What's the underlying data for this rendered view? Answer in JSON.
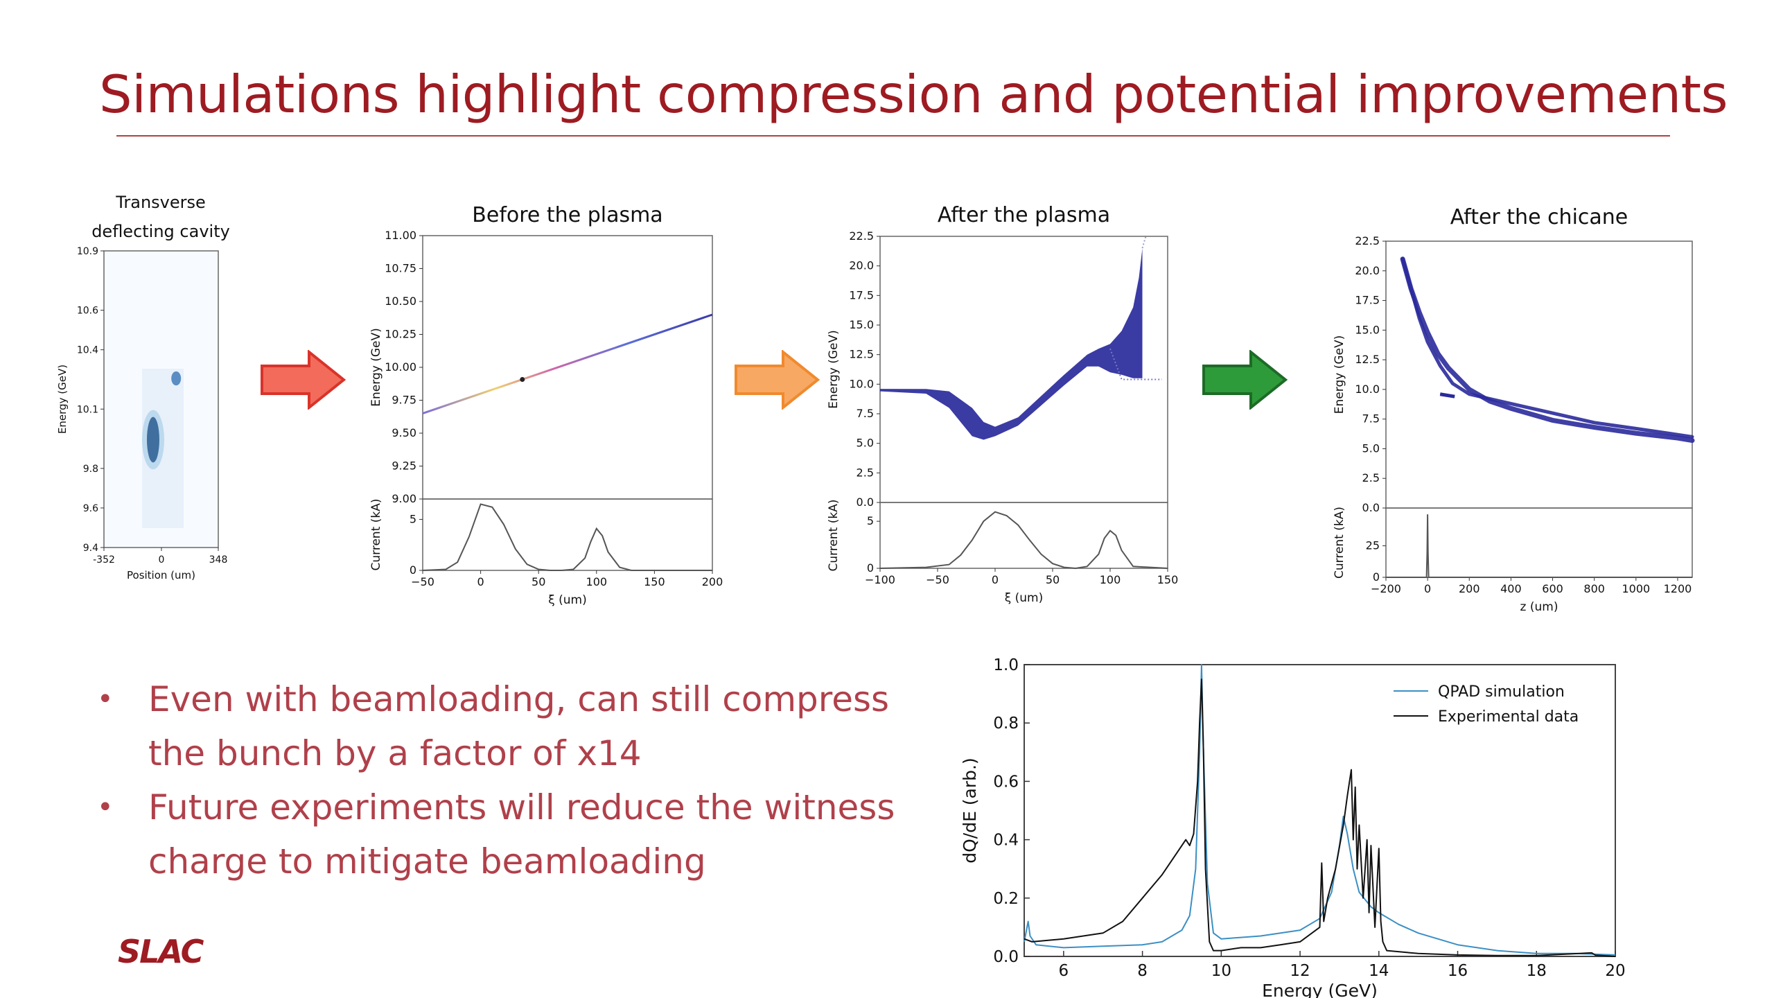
{
  "slide": {
    "title": "Simulations highlight compression and potential improvements",
    "bullets": [
      "Even with beamloading, can still compress the bunch by a factor of x14",
      "Future experiments will reduce the witness charge to mitigate beamloading"
    ],
    "logo": "SLAC",
    "colors": {
      "title": "#9e1b22",
      "bullet_text": "#b0404a",
      "arrow_red": "#f26b5b",
      "arrow_orange": "#f7a863",
      "arrow_green": "#2e9b3a",
      "sim_blue": "#2a2a9c",
      "qpad_line": "#3b8fc4",
      "exp_line": "#111111"
    },
    "arrows": [
      "red-right-arrow",
      "orange-right-arrow",
      "green-right-arrow"
    ]
  },
  "chart_data": [
    {
      "type": "heatmap",
      "title": "Transverse deflecting cavity",
      "title_lines": [
        "Transverse",
        "deflecting cavity"
      ],
      "xlabel": "Position (um)",
      "ylabel": "Energy (GeV)",
      "x_ticks": [
        "-352",
        "0",
        "348"
      ],
      "y_ticks": [
        "10.9",
        "10.6",
        "10.4",
        "10.1",
        "9.8",
        "9.6",
        "9.4"
      ],
      "spots": [
        {
          "x": 0,
          "y_min": 9.83,
          "y_max": 10.06,
          "intensity": "high"
        },
        {
          "x": 90,
          "y_min": 10.23,
          "y_max": 10.28,
          "intensity": "medium"
        }
      ]
    },
    {
      "type": "line",
      "title": "Before the plasma",
      "top": {
        "ylabel": "Energy (GeV)",
        "ylim": [
          9.0,
          11.0
        ],
        "y_ticks": [
          "11.00",
          "10.75",
          "10.50",
          "10.25",
          "10.00",
          "9.75",
          "9.50",
          "9.25",
          "9.00"
        ],
        "series": [
          {
            "x": [
              -50,
              200
            ],
            "y": [
              9.65,
              10.4
            ]
          }
        ]
      },
      "bottom": {
        "ylabel": "Current (kA)",
        "xlabel": "ξ (um)",
        "xlim": [
          -50,
          200
        ],
        "ylim": [
          0,
          7
        ],
        "x_ticks": [
          "−50",
          "0",
          "50",
          "100",
          "150",
          "200"
        ],
        "y_ticks": [
          "5",
          "0"
        ],
        "series": [
          {
            "x": [
              -50,
              -30,
              -20,
              -10,
              0,
              10,
              20,
              30,
              40,
              50,
              60,
              70,
              80,
              90,
              95,
              100,
              105,
              110,
              120,
              130,
              140,
              150,
              200
            ],
            "y": [
              0,
              0.1,
              0.8,
              3.3,
              6.5,
              6.2,
              4.5,
              2.1,
              0.6,
              0.1,
              0.0,
              0.0,
              0.1,
              1.2,
              2.8,
              4.1,
              3.4,
              1.8,
              0.3,
              0.0,
              0.0,
              0.0,
              0
            ]
          }
        ]
      }
    },
    {
      "type": "scatter",
      "title": "After the plasma",
      "top": {
        "ylabel": "Energy (GeV)",
        "ylim": [
          0,
          22.5
        ],
        "y_ticks": [
          "22.5",
          "20.0",
          "17.5",
          "15.0",
          "12.5",
          "10.0",
          "7.5",
          "5.0",
          "2.5",
          "0.0"
        ],
        "band_upper": {
          "x": [
            -100,
            -60,
            -40,
            -20,
            -10,
            0,
            20,
            40,
            60,
            80,
            90,
            100,
            110,
            120,
            125,
            128
          ],
          "y": [
            9.6,
            9.6,
            9.4,
            8.0,
            6.8,
            6.4,
            7.2,
            9.0,
            10.8,
            12.5,
            13.0,
            13.4,
            14.5,
            16.5,
            19.0,
            21.5
          ]
        },
        "band_lower": {
          "x": [
            -100,
            -60,
            -40,
            -20,
            -10,
            0,
            20,
            40,
            60,
            80,
            90,
            100,
            110,
            120,
            125,
            128
          ],
          "y": [
            9.4,
            9.2,
            8.0,
            5.6,
            5.3,
            5.6,
            6.5,
            8.2,
            9.9,
            11.5,
            11.5,
            11.0,
            10.8,
            10.5,
            10.5,
            10.5
          ]
        }
      },
      "bottom": {
        "ylabel": "Current (kA)",
        "xlabel": "ξ (um)",
        "xlim": [
          -100,
          150
        ],
        "ylim": [
          0,
          7
        ],
        "x_ticks": [
          "−100",
          "−50",
          "0",
          "50",
          "100",
          "150"
        ],
        "y_ticks": [
          "5",
          "0"
        ],
        "series": [
          {
            "x": [
              -100,
              -60,
              -40,
              -30,
              -20,
              -10,
              0,
              10,
              20,
              30,
              40,
              50,
              60,
              70,
              80,
              90,
              95,
              100,
              105,
              110,
              120,
              150
            ],
            "y": [
              0,
              0.1,
              0.4,
              1.4,
              3.0,
              5.0,
              6.0,
              5.6,
              4.6,
              3.0,
              1.5,
              0.5,
              0.1,
              0.0,
              0.2,
              1.5,
              3.2,
              4.0,
              3.5,
              1.9,
              0.2,
              0
            ]
          }
        ]
      }
    },
    {
      "type": "scatter",
      "title": "After the chicane",
      "top": {
        "ylabel": "Energy (GeV)",
        "ylim": [
          0,
          22.5
        ],
        "y_ticks": [
          "22.5",
          "20.0",
          "17.5",
          "15.0",
          "12.5",
          "10.0",
          "7.5",
          "5.0",
          "2.5",
          "0.0"
        ],
        "curve_main": {
          "x": [
            -120,
            -80,
            -40,
            0,
            50,
            100,
            200,
            300,
            400,
            600,
            800,
            1000,
            1200,
            1270
          ],
          "y": [
            21,
            18.5,
            16.5,
            14.8,
            13.0,
            11.8,
            10.0,
            9.0,
            8.4,
            7.4,
            6.8,
            6.3,
            5.9,
            5.7
          ]
        },
        "curve_witness": {
          "x": [
            -120,
            -40,
            0,
            60,
            120,
            200,
            300,
            400,
            600,
            800,
            1000,
            1270
          ],
          "y": [
            21,
            16,
            14.0,
            12.0,
            10.5,
            9.6,
            9.2,
            8.8,
            8.0,
            7.2,
            6.7,
            6.0
          ]
        }
      },
      "bottom": {
        "ylabel": "Current (kA)",
        "xlabel": "z (um)",
        "xlim": [
          -200,
          1270
        ],
        "ylim": [
          0,
          55
        ],
        "x_ticks": [
          "−200",
          "0",
          "200",
          "400",
          "600",
          "800",
          "1000",
          "1200"
        ],
        "y_ticks": [
          "25",
          "0"
        ],
        "series": [
          {
            "x": [
              -200,
              -5,
              -2,
              0,
              2,
              5,
              1270
            ],
            "y": [
              0,
              0,
              20,
              50,
              20,
              0,
              0
            ]
          }
        ]
      }
    },
    {
      "type": "line",
      "xlabel": "Energy (GeV)",
      "ylabel": "dQ/dE (arb.)",
      "xlim": [
        5,
        20
      ],
      "ylim": [
        0,
        1.0
      ],
      "x_ticks": [
        "6",
        "8",
        "10",
        "12",
        "14",
        "16",
        "18",
        "20"
      ],
      "y_ticks": [
        "1.0",
        "0.8",
        "0.6",
        "0.4",
        "0.2",
        "0.0"
      ],
      "legend": "top-right",
      "series": [
        {
          "name": "QPAD simulation",
          "x": [
            5.0,
            5.1,
            5.15,
            5.3,
            6,
            7,
            8,
            8.5,
            9.0,
            9.2,
            9.35,
            9.45,
            9.5,
            9.55,
            9.65,
            9.8,
            10.0,
            10.5,
            11,
            12,
            12.5,
            12.8,
            13.0,
            13.1,
            13.2,
            13.35,
            13.5,
            13.8,
            14.0,
            14.5,
            15,
            16,
            17,
            18,
            19,
            20
          ],
          "y": [
            0.05,
            0.12,
            0.07,
            0.04,
            0.03,
            0.035,
            0.04,
            0.05,
            0.09,
            0.14,
            0.3,
            0.7,
            1.0,
            0.7,
            0.25,
            0.08,
            0.06,
            0.065,
            0.07,
            0.09,
            0.13,
            0.22,
            0.38,
            0.48,
            0.42,
            0.3,
            0.22,
            0.17,
            0.15,
            0.11,
            0.08,
            0.04,
            0.02,
            0.01,
            0.01,
            0.005
          ]
        },
        {
          "name": "Experimental data",
          "x": [
            5.0,
            5.2,
            6,
            7,
            7.5,
            8,
            8.5,
            8.9,
            9.1,
            9.2,
            9.3,
            9.4,
            9.45,
            9.5,
            9.55,
            9.6,
            9.7,
            9.8,
            10,
            10.5,
            11,
            11.5,
            12,
            12.5,
            12.55,
            12.6,
            12.7,
            12.9,
            13.1,
            13.2,
            13.3,
            13.35,
            13.4,
            13.45,
            13.5,
            13.6,
            13.7,
            13.75,
            13.8,
            13.9,
            14.0,
            14.05,
            14.1,
            14.2,
            15,
            16,
            17,
            18,
            19.4,
            19.5,
            20
          ],
          "y": [
            0.06,
            0.05,
            0.06,
            0.08,
            0.12,
            0.2,
            0.28,
            0.36,
            0.4,
            0.38,
            0.42,
            0.6,
            0.8,
            0.95,
            0.7,
            0.3,
            0.05,
            0.02,
            0.02,
            0.03,
            0.03,
            0.04,
            0.05,
            0.1,
            0.32,
            0.12,
            0.2,
            0.3,
            0.45,
            0.55,
            0.64,
            0.4,
            0.58,
            0.3,
            0.45,
            0.2,
            0.4,
            0.15,
            0.38,
            0.1,
            0.37,
            0.12,
            0.05,
            0.02,
            0.01,
            0.005,
            0.003,
            0.003,
            0.012,
            0.004,
            0.0
          ]
        }
      ]
    }
  ]
}
